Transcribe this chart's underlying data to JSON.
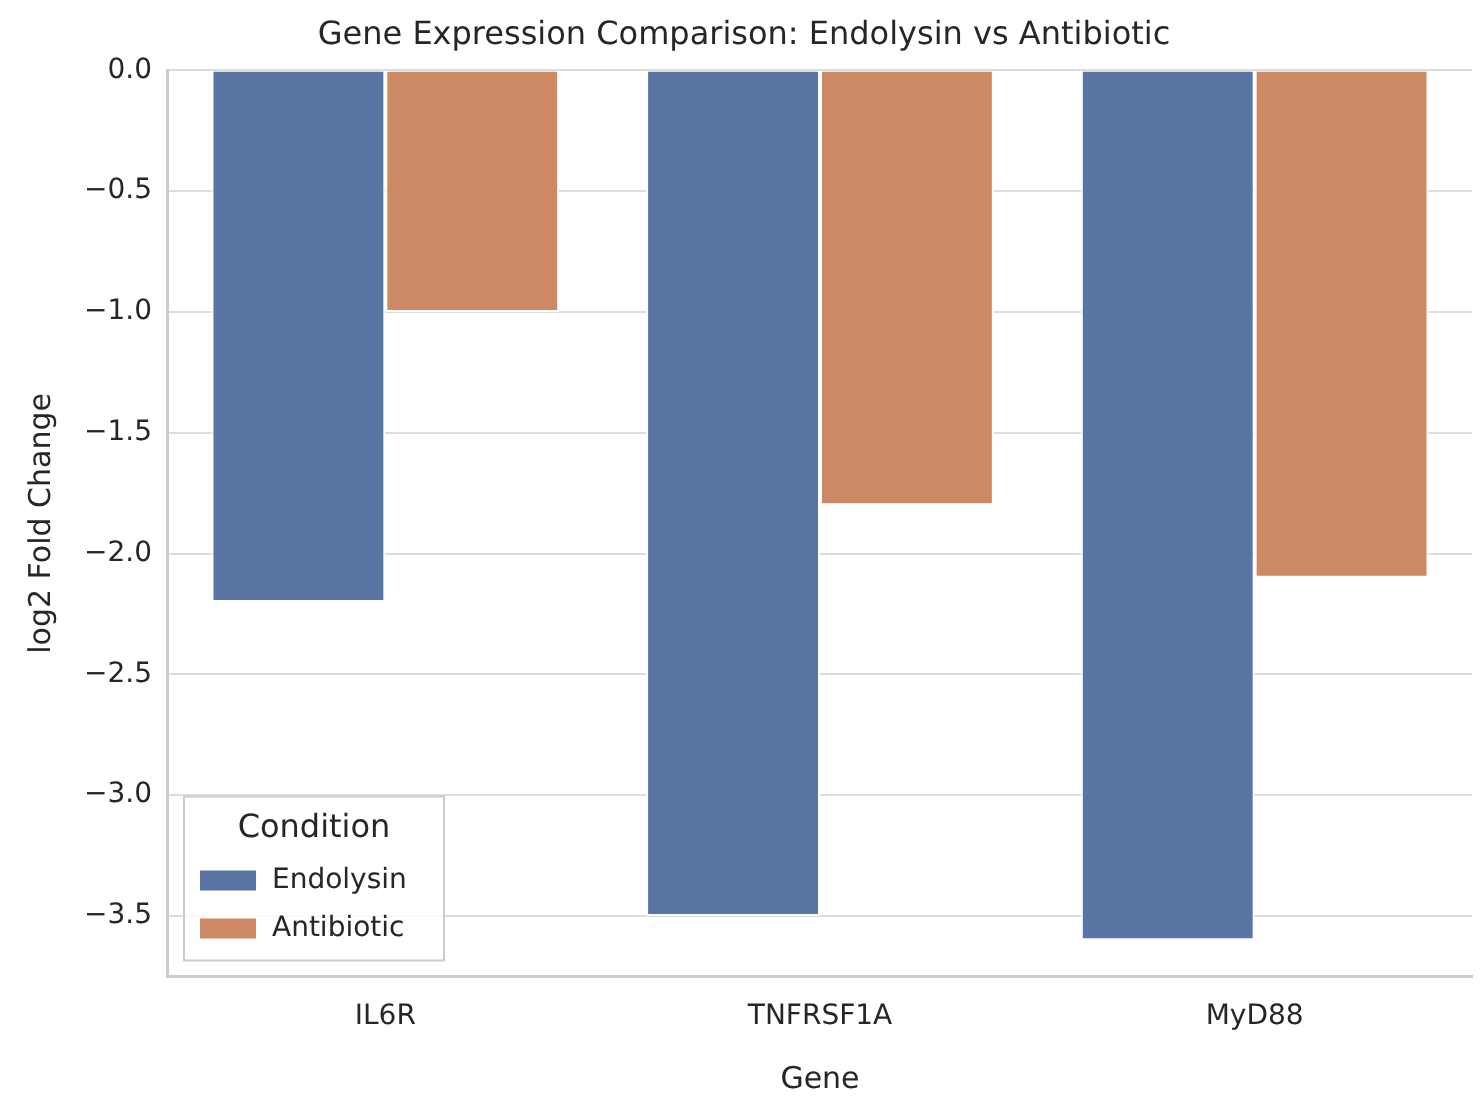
{
  "chart_data": {
    "type": "bar",
    "title": "Gene Expression Comparison: Endolysin vs Antibiotic",
    "xlabel": "Gene",
    "ylabel": "log2 Fold Change",
    "legend_title": "Condition",
    "categories": [
      "IL6R",
      "TNFRSF1A",
      "MyD88"
    ],
    "series": [
      {
        "name": "Endolysin",
        "color": "#5875a4",
        "values": [
          -2.2,
          -3.5,
          -3.6
        ]
      },
      {
        "name": "Antibiotic",
        "color": "#cc8963",
        "values": [
          -1.0,
          -1.8,
          -2.1
        ]
      }
    ],
    "ylim": [
      -3.75,
      0
    ],
    "yticks": [
      {
        "value": 0,
        "label": "0.0"
      },
      {
        "value": -0.5,
        "label": "−0.5"
      },
      {
        "value": -1,
        "label": "−1.0"
      },
      {
        "value": -1.5,
        "label": "−1.5"
      },
      {
        "value": -2,
        "label": "−2.0"
      },
      {
        "value": -2.5,
        "label": "−2.5"
      },
      {
        "value": -3,
        "label": "−3.0"
      },
      {
        "value": -3.5,
        "label": "−3.5"
      }
    ],
    "grid": "y",
    "legend": "bottom left"
  }
}
